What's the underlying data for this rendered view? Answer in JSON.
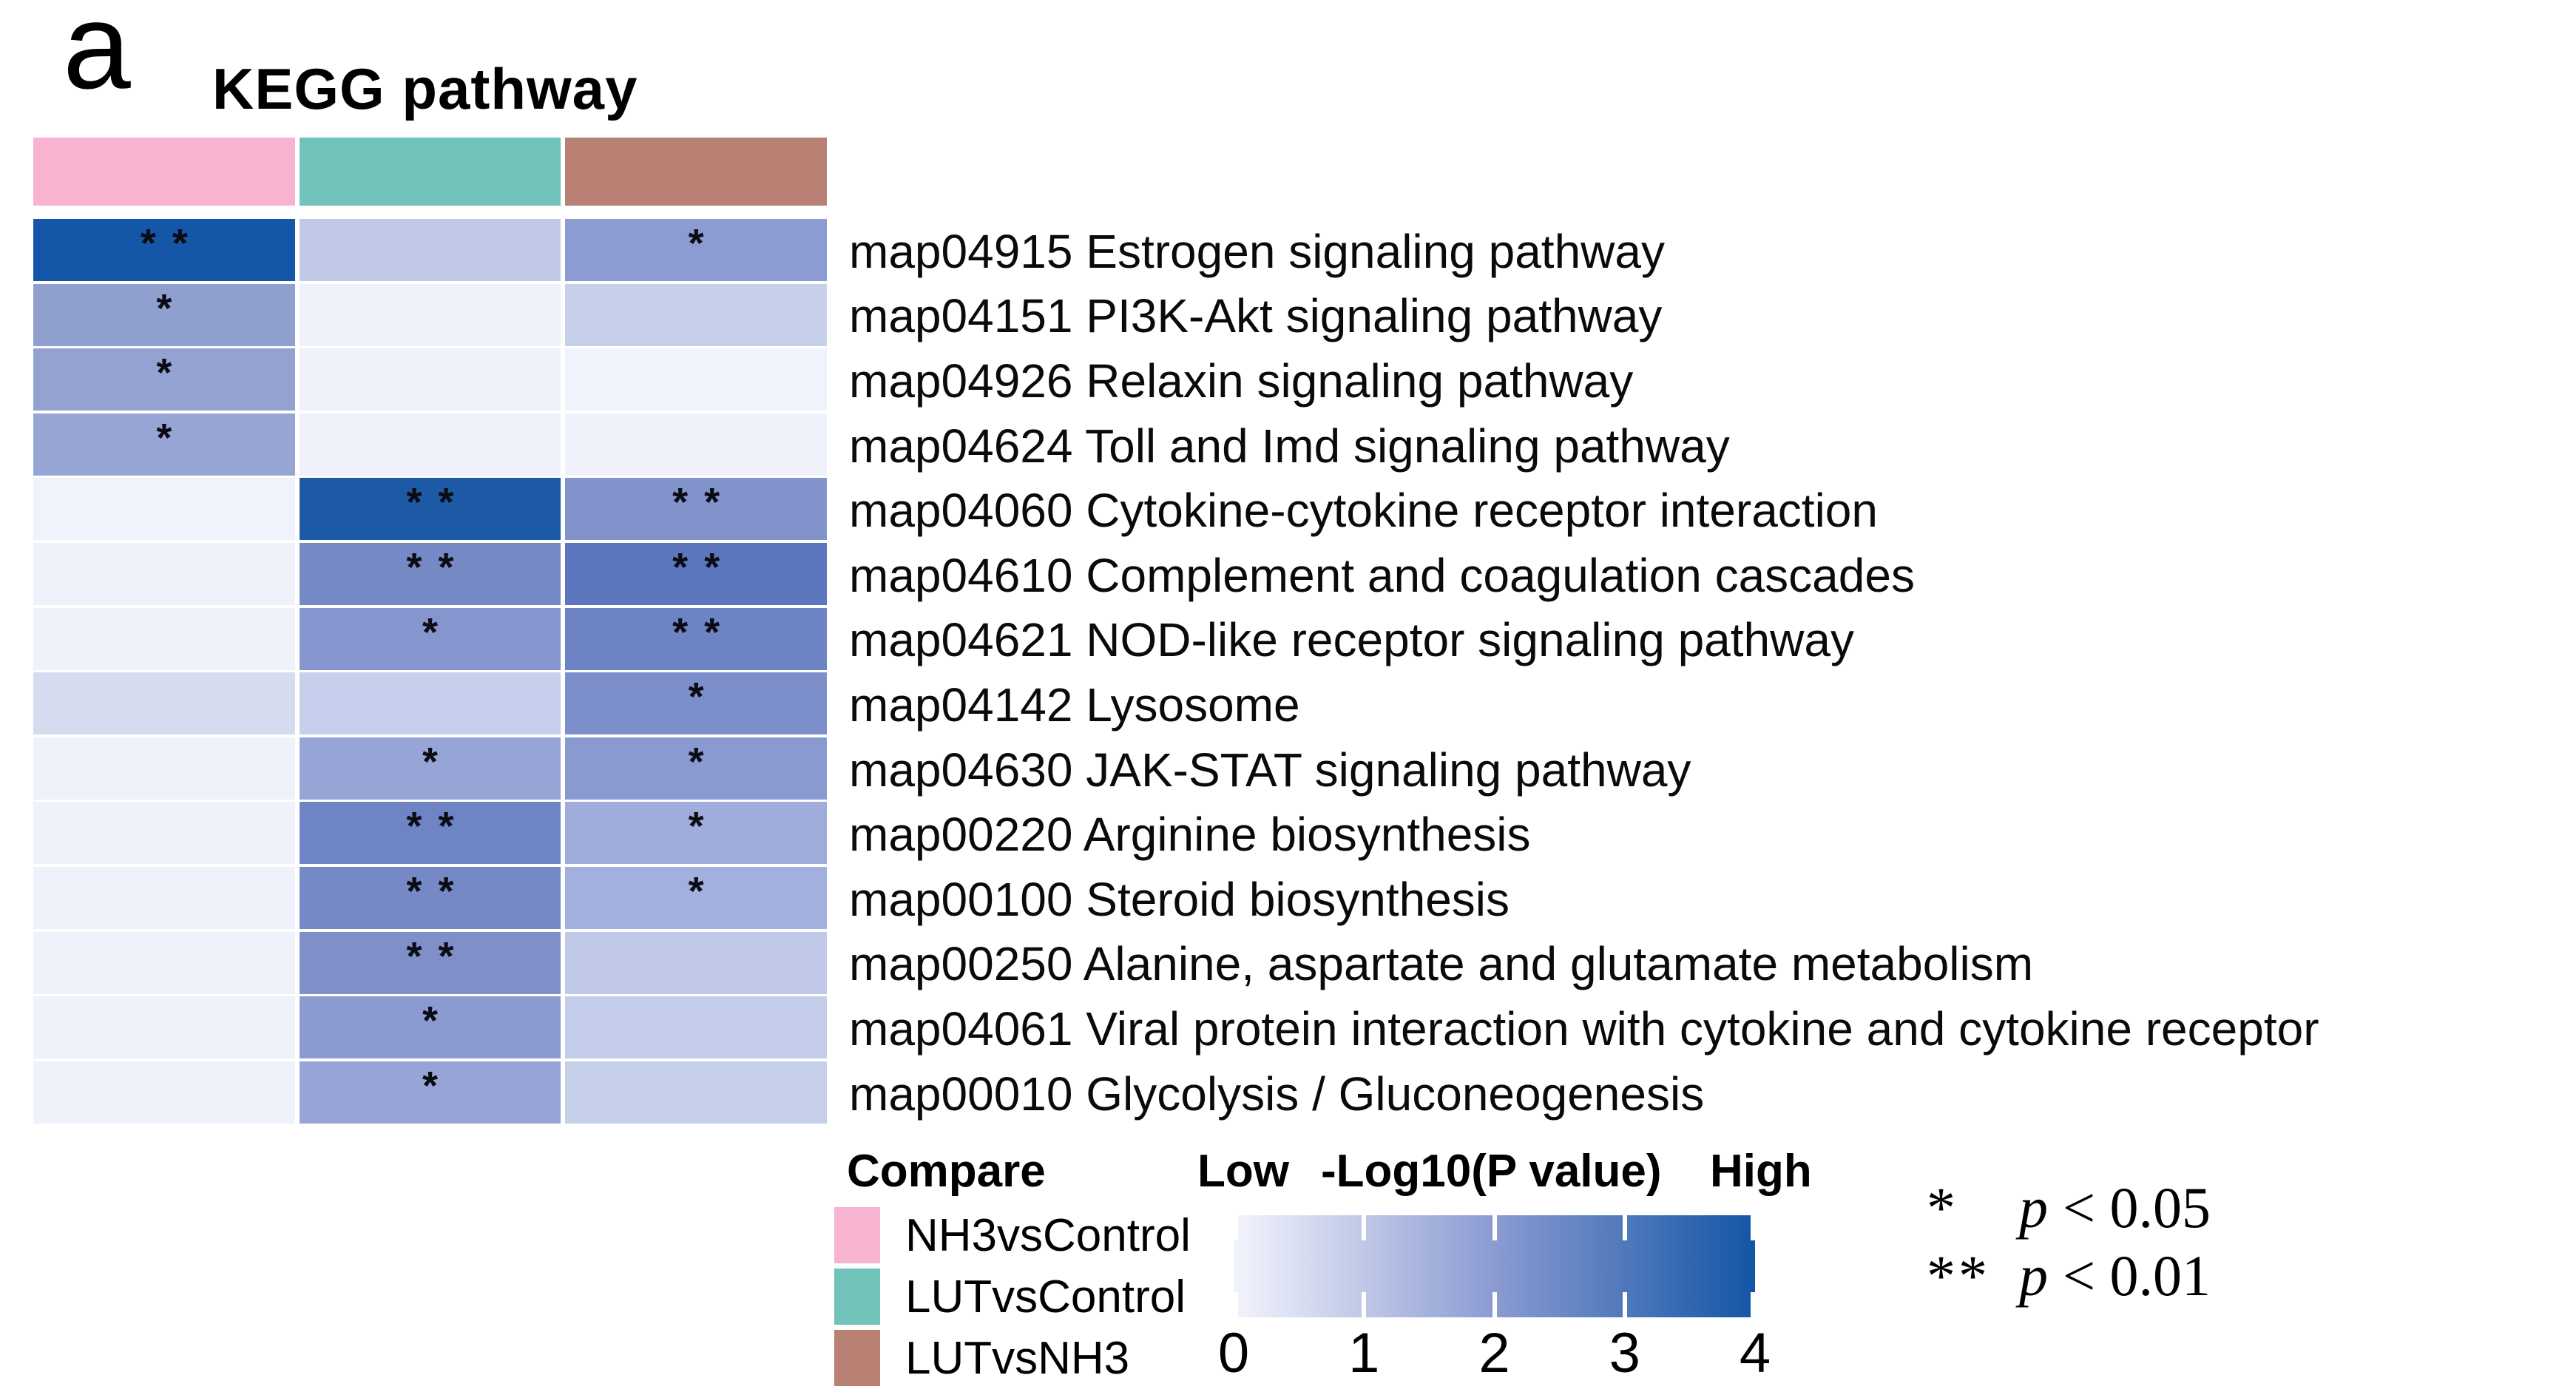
{
  "panel_label": "a",
  "chart_data": {
    "type": "heatmap",
    "title": "KEGG pathway",
    "value_label": "-Log10(P value)",
    "value_range": [
      0,
      4
    ],
    "columns": [
      "NH3vsControl",
      "LUTvsControl",
      "LUTvsNH3"
    ],
    "column_header_colors": [
      "#f8b3d0",
      "#71c2b8",
      "#b98074"
    ],
    "rows": [
      {
        "label": "map04915 Estrogen signaling pathway",
        "values": [
          4.0,
          0.9,
          2.1
        ],
        "significance": [
          "**",
          "",
          "*"
        ],
        "cell_colors": [
          "#1457a8",
          "#c0cae7",
          "#8c9bd2"
        ]
      },
      {
        "label": "map04151 PI3K-Akt signaling pathway",
        "values": [
          2.0,
          0.1,
          0.8
        ],
        "significance": [
          "*",
          "",
          ""
        ],
        "cell_colors": [
          "#8fa0ce",
          "#eff2fb",
          "#c7d0e9"
        ]
      },
      {
        "label": "map04926 Relaxin signaling pathway",
        "values": [
          2.0,
          0.1,
          0.1
        ],
        "significance": [
          "*",
          "",
          ""
        ],
        "cell_colors": [
          "#93a2d1",
          "#eff2fb",
          "#f0f3fb"
        ]
      },
      {
        "label": "map04624 Toll and Imd signaling pathway",
        "values": [
          1.9,
          0.1,
          0.1
        ],
        "significance": [
          "*",
          "",
          ""
        ],
        "cell_colors": [
          "#97a5d4",
          "#eef1fa",
          "#eff2fb"
        ]
      },
      {
        "label": "map04060 Cytokine-cytokine receptor interaction",
        "values": [
          0.1,
          3.8,
          2.4
        ],
        "significance": [
          "",
          "**",
          "**"
        ],
        "cell_colors": [
          "#f0f3fb",
          "#1d5aa6",
          "#8293cc"
        ]
      },
      {
        "label": "map04610 Complement and coagulation cascades",
        "values": [
          0.1,
          2.6,
          3.0
        ],
        "significance": [
          "",
          "**",
          "**"
        ],
        "cell_colors": [
          "#eff2fb",
          "#7589c5",
          "#5c77be"
        ]
      },
      {
        "label": "map04621 NOD-like receptor signaling pathway",
        "values": [
          0.1,
          2.3,
          2.8
        ],
        "significance": [
          "",
          "*",
          "**"
        ],
        "cell_colors": [
          "#eff2fb",
          "#8496cd",
          "#6d83c4"
        ]
      },
      {
        "label": "map04142 Lysosome",
        "values": [
          0.6,
          0.8,
          2.5
        ],
        "significance": [
          "",
          "",
          "*"
        ],
        "cell_colors": [
          "#d5dcf0",
          "#c6cfeb",
          "#7d8fca"
        ]
      },
      {
        "label": "map04630 JAK-STAT signaling pathway",
        "values": [
          0.1,
          1.9,
          2.2
        ],
        "significance": [
          "",
          "*",
          "*"
        ],
        "cell_colors": [
          "#eff2fb",
          "#96a4d6",
          "#8a9ad1"
        ]
      },
      {
        "label": "map00220 Arginine biosynthesis",
        "values": [
          0.1,
          2.8,
          1.6
        ],
        "significance": [
          "",
          "**",
          "*"
        ],
        "cell_colors": [
          "#eff2fb",
          "#6f84c4",
          "#a0acdb"
        ]
      },
      {
        "label": "map00100 Steroid biosynthesis",
        "values": [
          0.1,
          2.6,
          1.5
        ],
        "significance": [
          "",
          "**",
          "*"
        ],
        "cell_colors": [
          "#eff2fb",
          "#7689c7",
          "#a3afdc"
        ]
      },
      {
        "label": "map00250 Alanine, aspartate and glutamate metabolism",
        "values": [
          0.1,
          2.4,
          0.9
        ],
        "significance": [
          "",
          "**",
          ""
        ],
        "cell_colors": [
          "#eff2fb",
          "#7e8fca",
          "#c0cae8"
        ]
      },
      {
        "label": "map04061 Viral protein interaction with cytokine and cytokine receptor",
        "values": [
          0.1,
          2.1,
          0.9
        ],
        "significance": [
          "",
          "*",
          ""
        ],
        "cell_colors": [
          "#eff2fb",
          "#8b9bd2",
          "#c3cce9"
        ]
      },
      {
        "label": "map00010 Glycolysis / Gluconeogenesis",
        "values": [
          0.1,
          1.8,
          0.8
        ],
        "significance": [
          "",
          "*",
          ""
        ],
        "cell_colors": [
          "#eff2fb",
          "#97a4d6",
          "#c6cfea"
        ]
      }
    ],
    "colorbar": {
      "low_label": "Low",
      "label": "-Log10(P value)",
      "high_label": "High",
      "ticks": [
        0,
        1,
        2,
        3,
        4
      ],
      "gradient_stops": [
        "#f3f4fc",
        "#8b9bd2",
        "#1356a5"
      ]
    },
    "legend": {
      "title": "Compare",
      "items": [
        {
          "label": "NH3vsControl",
          "color": "#f8b3d0"
        },
        {
          "label": "LUTvsControl",
          "color": "#71c2b8"
        },
        {
          "label": "LUTvsNH3",
          "color": "#b98074"
        }
      ]
    },
    "significance_notes": [
      {
        "symbol": "*",
        "p": "p",
        "rest": "< 0.05"
      },
      {
        "symbol": "**",
        "p": "p",
        "rest": "< 0.01"
      }
    ]
  }
}
